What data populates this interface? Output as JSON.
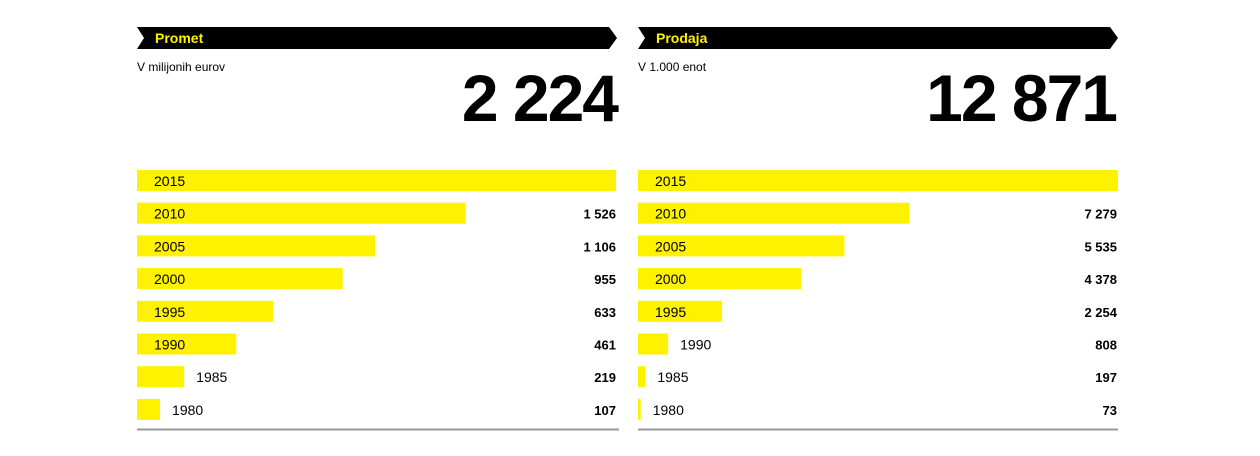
{
  "colors": {
    "bar": "#fff200",
    "banner": "#000000",
    "banner_text": "#fff200",
    "baseline": "#999999"
  },
  "chart_data": [
    {
      "type": "bar",
      "orientation": "horizontal",
      "title": "Promet",
      "subtitle": "V milijonih eurov",
      "headline_value": "2 224",
      "categories": [
        "2015",
        "2010",
        "2005",
        "2000",
        "1995",
        "1990",
        "1985",
        "1980"
      ],
      "values": [
        2224,
        1526,
        1106,
        955,
        633,
        461,
        219,
        107
      ],
      "value_labels": [
        "",
        "1 526",
        "1 106",
        "955",
        "633",
        "461",
        "219",
        "107"
      ],
      "xlim": [
        0,
        2224
      ]
    },
    {
      "type": "bar",
      "orientation": "horizontal",
      "title": "Prodaja",
      "subtitle": "V 1.000 enot",
      "headline_value": "12 871",
      "categories": [
        "2015",
        "2010",
        "2005",
        "2000",
        "1995",
        "1990",
        "1985",
        "1980"
      ],
      "values": [
        12871,
        7279,
        5535,
        4378,
        2254,
        808,
        197,
        73
      ],
      "value_labels": [
        "",
        "7 279",
        "5 535",
        "4 378",
        "2 254",
        "808",
        "197",
        "73"
      ],
      "xlim": [
        0,
        12871
      ]
    }
  ]
}
